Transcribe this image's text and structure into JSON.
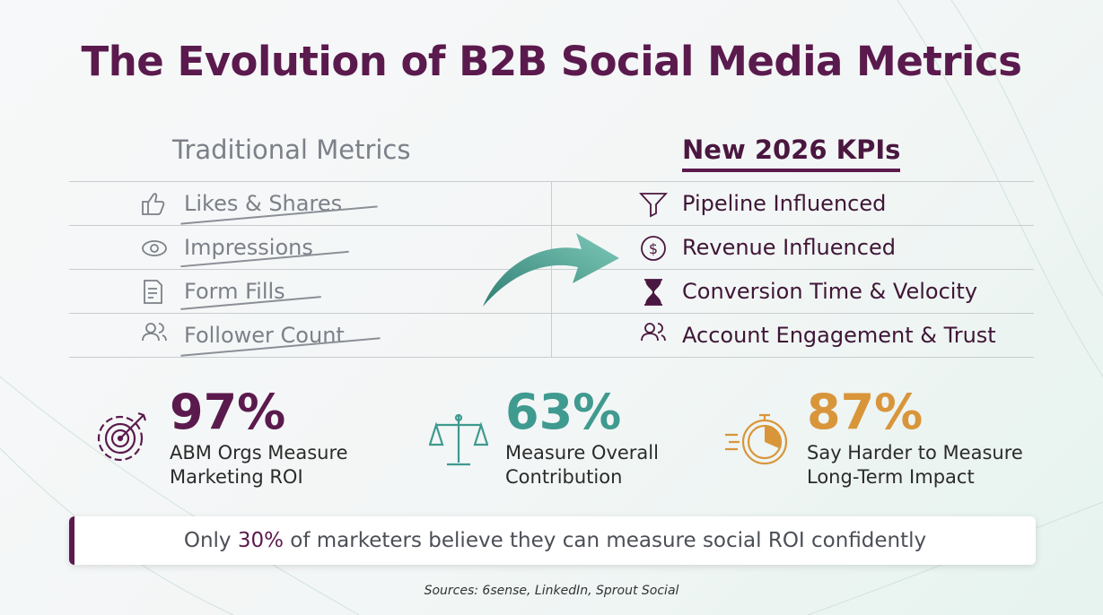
{
  "title": "The Evolution of B2B Social Media Metrics",
  "traditional": {
    "heading": "Traditional Metrics",
    "items": [
      "Likes & Shares",
      "Impressions",
      "Form Fills",
      "Follower Count"
    ]
  },
  "modern": {
    "heading": "New 2026 KPIs",
    "items": [
      "Pipeline Influenced",
      "Revenue Influenced",
      "Conversion Time & Velocity",
      "Account Engagement & Trust"
    ]
  },
  "stats": [
    {
      "value": "97%",
      "label": "ABM Orgs Measure\nMarketing ROI"
    },
    {
      "value": "63%",
      "label": "Measure Overall\nContribution"
    },
    {
      "value": "87%",
      "label": "Say Harder to Measure\nLong-Term Impact"
    }
  ],
  "callout": {
    "before": "Only ",
    "highlight": "30%",
    "after": " of marketers believe they can measure social ROI confidently"
  },
  "sources": "Sources: 6sense, LinkedIn, Sprout Social"
}
